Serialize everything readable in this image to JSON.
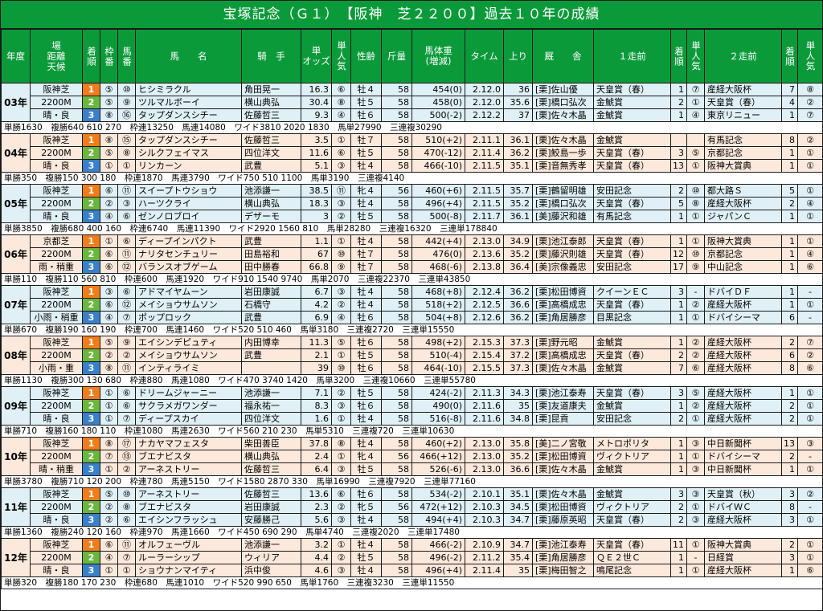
{
  "title": "宝塚記念（Ｇ１）　【阪神　芝２２００】過去１０年の成績",
  "headers": {
    "year": "年度",
    "venue": "場\n距離\n天候",
    "rank": "着順",
    "waku": "枠番",
    "uma": "馬番",
    "horse": "馬　　名",
    "jockey": "騎　手",
    "odds": "単\nオッズ",
    "pop": "単人気",
    "sex_age": "性齢",
    "weight": "斤量",
    "body_weight": "馬体重\n(増減)",
    "time": "タイム",
    "last3f": "上り",
    "stable": "厩　　舎",
    "prev1": "１走前",
    "prev1_rank": "着順",
    "prev1_pop": "単人気",
    "prev2": "２走前",
    "prev2_rank": "着順",
    "prev2_pop": "単人気"
  },
  "years": [
    {
      "year": "03年",
      "venue": [
        "阪神芝",
        "2200M",
        "晴・良"
      ],
      "rows": [
        {
          "rank": "1",
          "waku": "⑤",
          "uma": "⑩",
          "horse": "ヒシミラクル",
          "jockey": "角田晃一",
          "odds": "16.3",
          "pop": "⑥",
          "sex_age": "牡４",
          "weight": "58",
          "bw": "454(0)",
          "time": "2.12.0",
          "l3f": "36",
          "stable": "[栗]佐山優",
          "p1": "天皇賞（春）",
          "p1r": "1",
          "p1p": "⑦",
          "p2": "産経大阪杯",
          "p2r": "7",
          "p2p": "⑧"
        },
        {
          "rank": "2",
          "waku": "⑤",
          "uma": "⑨",
          "horse": "ツルマルボーイ",
          "jockey": "横山典弘",
          "odds": "30.4",
          "pop": "⑧",
          "sex_age": "牡５",
          "weight": "58",
          "bw": "458(0)",
          "time": "2.12.0",
          "l3f": "35.6",
          "stable": "[栗]橋口弘次",
          "p1": "金鯱賞",
          "p1r": "2",
          "p1p": "①",
          "p2": "天皇賞（春）",
          "p2r": "4",
          "p2p": "②"
        },
        {
          "rank": "3",
          "waku": "⑧",
          "uma": "⑯",
          "horse": "タップダンスシチー",
          "jockey": "佐藤哲三",
          "odds": "9.3",
          "pop": "④",
          "sex_age": "牡６",
          "weight": "58",
          "bw": "500(-2)",
          "time": "2.12.2",
          "l3f": "37",
          "stable": "[栗]佐々木晶",
          "p1": "金鯱賞",
          "p1r": "1",
          "p1p": "④",
          "p2": "東京リニュー",
          "p2r": "1",
          "p2p": "⑦"
        }
      ],
      "pay": "単勝1630　複勝640 610 270　枠連13250　馬連14080　ワイド3810 2020 1830　馬単27990　三連複30290"
    },
    {
      "year": "04年",
      "venue": [
        "阪神芝",
        "2200M",
        "晴・良"
      ],
      "rows": [
        {
          "rank": "1",
          "waku": "⑧",
          "uma": "⑮",
          "horse": "タップダンスシチー",
          "jockey": "佐藤哲三",
          "odds": "3.5",
          "pop": "①",
          "sex_age": "牡７",
          "weight": "58",
          "bw": "510(+2)",
          "time": "2.11.1",
          "l3f": "36.1",
          "stable": "[栗]佐々木晶",
          "p1": "金鯱賞",
          "p1r": "",
          "p1p": "",
          "p2": "有馬記念",
          "p2r": "8",
          "p2p": "②"
        },
        {
          "rank": "2",
          "waku": "⑤",
          "uma": "⑧",
          "horse": "シルクフェイマス",
          "jockey": "四位洋文",
          "odds": "11.6",
          "pop": "⑥",
          "sex_age": "牡５",
          "weight": "58",
          "bw": "470(-12)",
          "time": "2.11.4",
          "l3f": "36.2",
          "stable": "[栗]鮫島一歩",
          "p1": "天皇賞（春）",
          "p1r": "3",
          "p1p": "⑤",
          "p2": "京都記念",
          "p2r": "1",
          "p2p": "①"
        },
        {
          "rank": "3",
          "waku": "①",
          "uma": "①",
          "horse": "リンカーン",
          "jockey": "武豊",
          "odds": "5.1",
          "pop": "③",
          "sex_age": "牡４",
          "weight": "58",
          "bw": "466(-10)",
          "time": "2.11.5",
          "l3f": "35.1",
          "stable": "[栗]音無秀孝",
          "p1": "天皇賞（春）",
          "p1r": "13",
          "p1p": "①",
          "p2": "阪神大賞典",
          "p2r": "1",
          "p2p": "①"
        }
      ],
      "pay": "単勝350　複勝150 300 180　枠連1870　馬連3790　ワイド750 510 1100　馬単3190　三連複4140"
    },
    {
      "year": "05年",
      "venue": [
        "阪神芝",
        "2200M",
        "晴・良"
      ],
      "rows": [
        {
          "rank": "1",
          "waku": "⑥",
          "uma": "⑪",
          "horse": "スイープトウショウ",
          "jockey": "池添謙一",
          "odds": "38.5",
          "pop": "⑪",
          "sex_age": "牝４",
          "weight": "56",
          "bw": "460(+6)",
          "time": "2.11.5",
          "l3f": "35.7",
          "stable": "[栗]鶴留明雄",
          "p1": "安田記念",
          "p1r": "2",
          "p1p": "⑩",
          "p2": "都大路Ｓ",
          "p2r": "5",
          "p2p": "①"
        },
        {
          "rank": "2",
          "waku": "②",
          "uma": "③",
          "horse": "ハーツクライ",
          "jockey": "横山典弘",
          "odds": "18.3",
          "pop": "③",
          "sex_age": "牡４",
          "weight": "58",
          "bw": "496(+4)",
          "time": "2.11.5",
          "l3f": "35.2",
          "stable": "[栗]橋口弘次",
          "p1": "天皇賞（春）",
          "p1r": "5",
          "p1p": "⑧",
          "p2": "産経大阪杯",
          "p2r": "2",
          "p2p": "④"
        },
        {
          "rank": "3",
          "waku": "④",
          "uma": "⑥",
          "horse": "ゼンノロブロイ",
          "jockey": "デザーモ",
          "odds": "3",
          "pop": "②",
          "sex_age": "牡５",
          "weight": "58",
          "bw": "500(-8)",
          "time": "2.11.7",
          "l3f": "36.1",
          "stable": "[美]藤沢和雄",
          "p1": "有馬記念",
          "p1r": "1",
          "p1p": "①",
          "p2": "ジャパンＣ",
          "p2r": "1",
          "p2p": "①"
        }
      ],
      "pay": "単勝3850　複勝680 400 160　枠連6740　馬連11390　ワイド2920 1560 810　馬単28280　三連複16320　三連単178840"
    },
    {
      "year": "06年",
      "venue": [
        "京都芝",
        "2200M",
        "雨・稍重"
      ],
      "rows": [
        {
          "rank": "1",
          "waku": "①",
          "uma": "⑥",
          "horse": "ディープインパクト",
          "jockey": "武豊",
          "odds": "1.1",
          "pop": "①",
          "sex_age": "牡４",
          "weight": "58",
          "bw": "442(+4)",
          "time": "2.13.0",
          "l3f": "34.9",
          "stable": "[栗]池江泰郎",
          "p1": "天皇賞（春）",
          "p1r": "1",
          "p1p": "①",
          "p2": "阪神大賞典",
          "p2r": "1",
          "p2p": "①"
        },
        {
          "rank": "2",
          "waku": "⑥",
          "uma": "⑪",
          "horse": "ナリタセンチュリー",
          "jockey": "田島裕和",
          "odds": "67",
          "pop": "⑩",
          "sex_age": "牡７",
          "weight": "58",
          "bw": "476(0)",
          "time": "2.13.6",
          "l3f": "35.2",
          "stable": "[栗]藤沢則雄",
          "p1": "天皇賞（春）",
          "p1r": "12",
          "p1p": "⑩",
          "p2": "京都記念",
          "p2r": "1",
          "p2p": "④"
        },
        {
          "rank": "3",
          "waku": "⑥",
          "uma": "⑫",
          "horse": "バランスオブゲーム",
          "jockey": "田中勝春",
          "odds": "66.8",
          "pop": "⑨",
          "sex_age": "牡７",
          "weight": "58",
          "bw": "468(-6)",
          "time": "2.13.8",
          "l3f": "36.4",
          "stable": "[美]宗像義忠",
          "p1": "安田記念",
          "p1r": "17",
          "p1p": "⑨",
          "p2": "中山記念",
          "p2r": "1",
          "p2p": "⑥"
        }
      ],
      "pay": "単勝110　複勝110 560 810　枠連600　馬連1920　ワイド910 1540 9740　馬単2070　三連複22370　三連単43850"
    },
    {
      "year": "07年",
      "venue": [
        "阪神芝",
        "2200M",
        "小雨・稍重"
      ],
      "rows": [
        {
          "rank": "1",
          "waku": "③",
          "uma": "⑥",
          "horse": "アドマイヤムーン",
          "jockey": "岩田康誠",
          "odds": "6.7",
          "pop": "③",
          "sex_age": "牡４",
          "weight": "58",
          "bw": "468(+8)",
          "time": "2.12.4",
          "l3f": "36.2",
          "stable": "[栗]松田博資",
          "p1": "クイーンＥＣ",
          "p1r": "3",
          "p1p": "-",
          "p2": "ドバイＤＦ",
          "p2r": "1",
          "p2p": "-"
        },
        {
          "rank": "2",
          "waku": "⑥",
          "uma": "⑫",
          "horse": "メイショウサムソン",
          "jockey": "石橋守",
          "odds": "4.2",
          "pop": "②",
          "sex_age": "牡４",
          "weight": "58",
          "bw": "518(+2)",
          "time": "2.12.5",
          "l3f": "36.6",
          "stable": "[栗]高橋成忠",
          "p1": "天皇賞（春）",
          "p1r": "1",
          "p1p": "②",
          "p2": "産経大阪杯",
          "p2r": "1",
          "p2p": "①"
        },
        {
          "rank": "3",
          "waku": "④",
          "uma": "⑦",
          "horse": "ポップロック",
          "jockey": "武豊",
          "odds": "6.9",
          "pop": "④",
          "sex_age": "牡６",
          "weight": "58",
          "bw": "504(+8)",
          "time": "2.12.6",
          "l3f": "36.2",
          "stable": "[栗]角居勝彦",
          "p1": "目黒記念",
          "p1r": "1",
          "p1p": "①",
          "p2": "ドバイシーマ",
          "p2r": "6",
          "p2p": "-"
        }
      ],
      "pay": "単勝670　複勝190 160 190　枠連700　馬連1460　ワイド520 510 460　馬単3180　三連複2720　三連単15550"
    },
    {
      "year": "08年",
      "venue": [
        "阪神芝",
        "2200M",
        "小雨・重"
      ],
      "rows": [
        {
          "rank": "1",
          "waku": "⑤",
          "uma": "⑨",
          "horse": "エイシンデピュティ",
          "jockey": "内田博幸",
          "odds": "11.3",
          "pop": "⑤",
          "sex_age": "牡６",
          "weight": "58",
          "bw": "498(+2)",
          "time": "2.15.3",
          "l3f": "37.3",
          "stable": "[栗]野元昭",
          "p1": "金鯱賞",
          "p1r": "1",
          "p1p": "②",
          "p2": "産経大阪杯",
          "p2r": "2",
          "p2p": "⑦"
        },
        {
          "rank": "2",
          "waku": "②",
          "uma": "②",
          "horse": "メイショウサムソン",
          "jockey": "武豊",
          "odds": "2.1",
          "pop": "①",
          "sex_age": "牡５",
          "weight": "58",
          "bw": "510(-4)",
          "time": "2.15.4",
          "l3f": "37.2",
          "stable": "[栗]高橋成忠",
          "p1": "天皇賞（春）",
          "p1r": "2",
          "p1p": "②",
          "p2": "産経大阪杯",
          "p2r": "6",
          "p2p": "②"
        },
        {
          "rank": "3",
          "waku": "⑧",
          "uma": "⑪",
          "horse": "インティライミ",
          "jockey": "",
          "odds": "39",
          "pop": "⑩",
          "sex_age": "牡６",
          "weight": "58",
          "bw": "464(-10)",
          "time": "2.15.5",
          "l3f": "37.3",
          "stable": "[栗]佐々木晶",
          "p1": "金鯱賞",
          "p1r": "7",
          "p1p": "⑥",
          "p2": "産経大阪杯",
          "p2r": "8",
          "p2p": "⑥"
        }
      ],
      "pay": "単勝1130　複勝300 130 680　枠連880　馬連1080　ワイド470 3740 1420　馬単3200　三連複10660　三連単55780"
    },
    {
      "year": "09年",
      "venue": [
        "阪神芝",
        "2200M",
        "晴・良"
      ],
      "rows": [
        {
          "rank": "1",
          "waku": "①",
          "uma": "⑥",
          "horse": "ドリームジャーニー",
          "jockey": "池添謙一",
          "odds": "7.1",
          "pop": "②",
          "sex_age": "牡５",
          "weight": "58",
          "bw": "424(-2)",
          "time": "2.11.3",
          "l3f": "34.3",
          "stable": "[栗]池江泰寿",
          "p1": "天皇賞（春）",
          "p1r": "3",
          "p1p": "⑤",
          "p2": "産経大阪杯",
          "p2r": "1",
          "p2p": "①"
        },
        {
          "rank": "2",
          "waku": "①",
          "uma": "⑥",
          "horse": "サクラメガワンダー",
          "jockey": "福永祐一",
          "odds": "8.3",
          "pop": "③",
          "sex_age": "牡６",
          "weight": "58",
          "bw": "490(0)",
          "time": "2.11.6",
          "l3f": "35",
          "stable": "[栗]友道康夫",
          "p1": "金鯱賞",
          "p1r": "1",
          "p1p": "②",
          "p2": "産経大阪杯",
          "p2r": "2",
          "p2p": "①"
        },
        {
          "rank": "3",
          "waku": "①",
          "uma": "⑦",
          "horse": "ディープスカイ",
          "jockey": "四位洋文",
          "odds": "1.6",
          "pop": "①",
          "sex_age": "牡４",
          "weight": "58",
          "bw": "516(-8)",
          "time": "2.11.6",
          "l3f": "34.8",
          "stable": "[栗]昆貢",
          "p1": "安田記念",
          "p1r": "2",
          "p1p": "①",
          "p2": "産経大阪杯",
          "p2r": "2",
          "p2p": "①"
        }
      ],
      "pay": "単勝710　複勝160 180 110　枠連1080　馬連2630　ワイド560 210 230　馬単5310　三連複720　三連単10630"
    },
    {
      "year": "10年",
      "venue": [
        "阪神芝",
        "2200M",
        "晴・稍重"
      ],
      "rows": [
        {
          "rank": "1",
          "waku": "⑧",
          "uma": "⑰",
          "horse": "ナカヤマフェスタ",
          "jockey": "柴田善臣",
          "odds": "37.8",
          "pop": "⑧",
          "sex_age": "牡４",
          "weight": "58",
          "bw": "460(+2)",
          "time": "2.13.0",
          "l3f": "35.8",
          "stable": "[美]二ノ宮敬",
          "p1": "メトロポリタ",
          "p1r": "1",
          "p1p": "③",
          "p2": "中日新聞杯",
          "p2r": "13",
          "p2p": "③"
        },
        {
          "rank": "2",
          "waku": "⑦",
          "uma": "⑬",
          "horse": "ブエナビスタ",
          "jockey": "横山典弘",
          "odds": "2.4",
          "pop": "①",
          "sex_age": "牝４",
          "weight": "56",
          "bw": "466(+12)",
          "time": "2.13.0",
          "l3f": "35.2",
          "stable": "[栗]松田博資",
          "p1": "ヴィクトリア",
          "p1r": "1",
          "p1p": "①",
          "p2": "ドバイシーマ",
          "p2r": "2",
          "p2p": "-"
        },
        {
          "rank": "3",
          "waku": "①",
          "uma": "②",
          "horse": "アーネストリー",
          "jockey": "佐藤哲三",
          "odds": "6.4",
          "pop": "③",
          "sex_age": "牡５",
          "weight": "58",
          "bw": "526(-6)",
          "time": "2.13.0",
          "l3f": "36.6",
          "stable": "[栗]佐々木晶",
          "p1": "金鯱賞",
          "p1r": "1",
          "p1p": "③",
          "p2": "中日新聞杯",
          "p2r": "1",
          "p2p": "①"
        }
      ],
      "pay": "単勝3780　複勝710 120 200　枠連780　馬連5150　ワイド1580 2870 330　馬単16990　三連複7920　三連単77160"
    },
    {
      "year": "11年",
      "venue": [
        "阪神芝",
        "2200M",
        "晴・良"
      ],
      "rows": [
        {
          "rank": "1",
          "waku": "⑤",
          "uma": "⑩",
          "horse": "アーネストリー",
          "jockey": "佐藤哲三",
          "odds": "13.6",
          "pop": "⑥",
          "sex_age": "牡６",
          "weight": "58",
          "bw": "534(-2)",
          "time": "2.10.1",
          "l3f": "35.1",
          "stable": "[栗]佐々木晶",
          "p1": "金鯱賞",
          "p1r": "3",
          "p1p": "③",
          "p2": "天皇賞（秋）",
          "p2r": "3",
          "p2p": "②"
        },
        {
          "rank": "2",
          "waku": "②",
          "uma": "⑧",
          "horse": "ブエナビスタ",
          "jockey": "岩田康誠",
          "odds": "2.3",
          "pop": "②",
          "sex_age": "牝５",
          "weight": "56",
          "bw": "472(+12)",
          "time": "2.10.3",
          "l3f": "34.5",
          "stable": "[栗]松田博資",
          "p1": "ヴィクトリア",
          "p1r": "2",
          "p1p": "①",
          "p2": "ドバイＷＣ",
          "p2r": "8",
          "p2p": "-"
        },
        {
          "rank": "3",
          "waku": "②",
          "uma": "⑥",
          "horse": "エイシンフラッシュ",
          "jockey": "安藤勝己",
          "odds": "5.6",
          "pop": "③",
          "sex_age": "牡４",
          "weight": "58",
          "bw": "494(+4)",
          "time": "2.10.3",
          "l3f": "34.7",
          "stable": "[栗]藤原英昭",
          "p1": "天皇賞（春）",
          "p1r": "2",
          "p1p": "③",
          "p2": "産経大阪杯",
          "p2r": "3",
          "p2p": "①"
        }
      ],
      "pay": "単勝1360　複勝240 120 160　枠連970　馬連1660　ワイド450 690 290　馬単4740　三連複2020　三連単17480"
    },
    {
      "year": "12年",
      "venue": [
        "阪神芝",
        "2200M",
        "晴・良"
      ],
      "rows": [
        {
          "rank": "1",
          "waku": "⑥",
          "uma": "⑪",
          "horse": "オルフェーヴル",
          "jockey": "池添謙一",
          "odds": "3.2",
          "pop": "①",
          "sex_age": "牡４",
          "weight": "58",
          "bw": "466(-2)",
          "time": "2.10.9",
          "l3f": "34.7",
          "stable": "[栗]池江泰寿",
          "p1": "天皇賞（春）",
          "p1r": "11",
          "p1p": "①",
          "p2": "阪神大賞典",
          "p2r": "2",
          "p2p": "①"
        },
        {
          "rank": "2",
          "waku": "④",
          "uma": "⑦",
          "horse": "ルーラーシップ",
          "jockey": "ウィリア",
          "odds": "4.4",
          "pop": "②",
          "sex_age": "牡５",
          "weight": "58",
          "bw": "496(-2)",
          "time": "2.11.2",
          "l3f": "35.4",
          "stable": "[栗]角居勝彦",
          "p1": "ＱＥ２世Ｃ",
          "p1r": "1",
          "p1p": "-",
          "p2": "日経賞",
          "p2r": "3",
          "p2p": "①"
        },
        {
          "rank": "3",
          "waku": "①",
          "uma": "①",
          "horse": "ショウナンマイティ",
          "jockey": "浜中俊",
          "odds": "4.6",
          "pop": "③",
          "sex_age": "牡４",
          "weight": "58",
          "bw": "496(+4)",
          "time": "2.11.4",
          "l3f": "35",
          "stable": "[栗]梅田智之",
          "p1": "鳴尾記念",
          "p1r": "1",
          "p1p": "①",
          "p2": "産経大阪杯",
          "p2r": "1",
          "p2p": "⑥"
        }
      ],
      "pay": "単勝320　複勝180 170 230　枠連680　馬連1010　ワイド520 990 650　馬単1760　三連複3230　三連単11550"
    }
  ]
}
